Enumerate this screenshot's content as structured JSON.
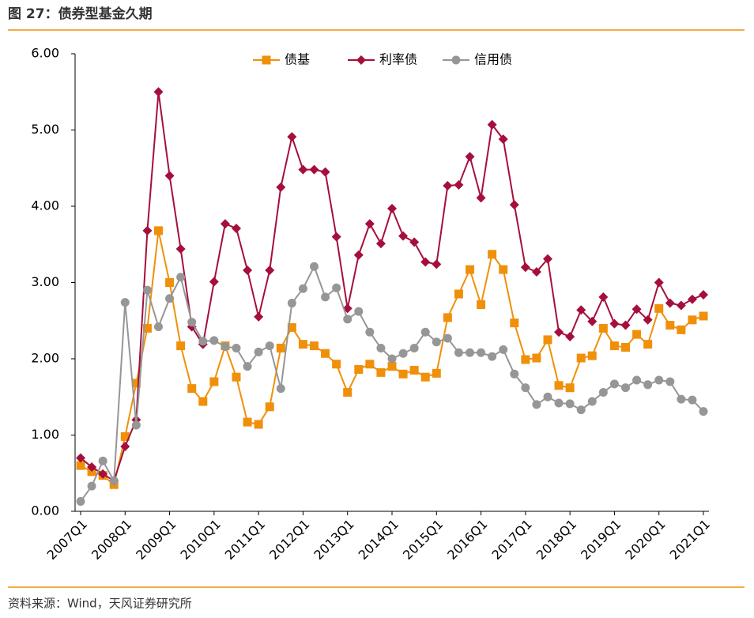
{
  "chart_data": {
    "type": "line",
    "title": "图 27：债券型基金久期",
    "source": "资料来源：Wind，天风证券研究所",
    "categories": [
      "2007Q1",
      null,
      null,
      null,
      "2008Q1",
      null,
      null,
      null,
      "2009Q1",
      null,
      null,
      null,
      "2010Q1",
      null,
      null,
      null,
      "2011Q1",
      null,
      null,
      null,
      "2012Q1",
      null,
      null,
      null,
      "2013Q1",
      null,
      null,
      null,
      "2014Q1",
      null,
      null,
      null,
      "2015Q1",
      null,
      null,
      null,
      "2016Q1",
      null,
      null,
      null,
      "2017Q1",
      null,
      null,
      null,
      "2018Q1",
      null,
      null,
      null,
      "2019Q1",
      null,
      null,
      null,
      "2020Q1",
      null,
      null,
      null,
      "2021Q1"
    ],
    "series": [
      {
        "name": "债基",
        "color": "#f0900a",
        "marker": "square",
        "values": [
          0.6,
          0.52,
          0.47,
          0.35,
          0.98,
          1.68,
          2.4,
          3.68,
          3.0,
          2.17,
          1.61,
          1.44,
          1.7,
          2.17,
          1.76,
          1.17,
          1.14,
          1.37,
          2.14,
          2.41,
          2.19,
          2.17,
          2.07,
          1.93,
          1.56,
          1.86,
          1.93,
          1.82,
          1.9,
          1.8,
          1.85,
          1.76,
          1.81,
          2.54,
          2.85,
          3.17,
          2.71,
          3.37,
          3.17,
          2.47,
          1.99,
          2.01,
          2.25,
          1.65,
          1.62,
          2.01,
          2.04,
          2.4,
          2.17,
          2.15,
          2.32,
          2.19,
          2.66,
          2.44,
          2.38,
          2.51,
          2.56
        ]
      },
      {
        "name": "利率债",
        "color": "#a50f3c",
        "marker": "diamond",
        "values": [
          0.7,
          0.58,
          0.49,
          0.4,
          0.85,
          1.2,
          3.68,
          5.5,
          4.4,
          3.44,
          2.42,
          2.19,
          3.01,
          3.77,
          3.71,
          3.16,
          2.55,
          3.16,
          4.25,
          4.91,
          4.48,
          4.48,
          4.45,
          3.6,
          2.66,
          3.36,
          3.77,
          3.51,
          3.97,
          3.61,
          3.53,
          3.27,
          3.24,
          4.27,
          4.28,
          4.65,
          4.11,
          5.07,
          4.88,
          4.02,
          3.2,
          3.14,
          3.31,
          2.35,
          2.29,
          2.64,
          2.49,
          2.81,
          2.46,
          2.44,
          2.65,
          2.51,
          3.0,
          2.73,
          2.7,
          2.78,
          2.84
        ]
      },
      {
        "name": "信用债",
        "color": "#969696",
        "marker": "circle",
        "values": [
          0.13,
          0.33,
          0.66,
          0.4,
          2.74,
          1.13,
          2.9,
          2.42,
          2.79,
          3.07,
          2.48,
          2.23,
          2.24,
          2.16,
          2.14,
          1.9,
          2.09,
          2.17,
          1.61,
          2.73,
          2.92,
          3.21,
          2.81,
          2.93,
          2.52,
          2.62,
          2.35,
          2.14,
          2.0,
          2.07,
          2.14,
          2.35,
          2.22,
          2.27,
          2.08,
          2.08,
          2.08,
          2.03,
          2.12,
          1.8,
          1.62,
          1.4,
          1.5,
          1.42,
          1.41,
          1.33,
          1.44,
          1.56,
          1.67,
          1.62,
          1.72,
          1.66,
          1.72,
          1.7,
          1.47,
          1.46,
          1.31
        ]
      }
    ],
    "ylim": [
      0,
      6
    ],
    "yticks": [
      {
        "value": 0,
        "label": "0.00"
      },
      {
        "value": 1,
        "label": "1.00"
      },
      {
        "value": 2,
        "label": "2.00"
      },
      {
        "value": 3,
        "label": "3.00"
      },
      {
        "value": 4,
        "label": "4.00"
      },
      {
        "value": 5,
        "label": "5.00"
      },
      {
        "value": 6,
        "label": "6.00"
      }
    ],
    "legend": "top"
  }
}
